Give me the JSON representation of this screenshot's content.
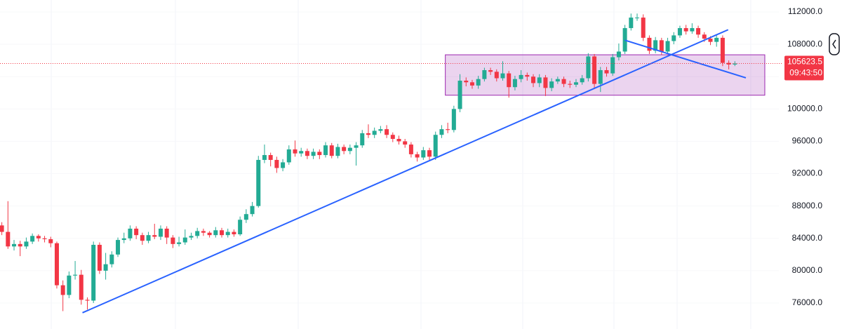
{
  "chart_data": {
    "type": "candlestick",
    "xlim": [
      -0.3,
      127.2
    ],
    "ylim": [
      72790,
      113475
    ],
    "yticks": [
      {
        "value": 76000,
        "label": "76000.0"
      },
      {
        "value": 80000,
        "label": "80000.0"
      },
      {
        "value": 84000,
        "label": "84000.0"
      },
      {
        "value": 88000,
        "label": "88000.0"
      },
      {
        "value": 92000,
        "label": "92000.0"
      },
      {
        "value": 96000,
        "label": "96000.0"
      },
      {
        "value": 100000,
        "label": "100000.0"
      },
      {
        "value": 104000,
        "label": "104000.0"
      },
      {
        "value": 108000,
        "label": "108000.0"
      },
      {
        "value": 112000,
        "label": "112000.0"
      }
    ],
    "up_color": "#22ab94",
    "down_color": "#f23645",
    "countdown": "09:43:50",
    "open": [
      85600,
      84800,
      83000,
      83300,
      83000,
      83600,
      84300,
      84000,
      83900,
      83400,
      78200,
      77000,
      79400,
      79500,
      76400,
      76300,
      83200,
      80000,
      80800,
      82000,
      83800,
      84000,
      85200,
      84400,
      83700,
      84400,
      84200,
      85200,
      84100,
      83300,
      83500,
      84100,
      84300,
      84900,
      84700,
      84400,
      85000,
      84400,
      84800,
      84500,
      86300,
      87000,
      88000,
      93700,
      94300,
      93700,
      92700,
      93400,
      95000,
      94500,
      94800,
      94200,
      94700,
      94300,
      95500,
      94200,
      95300,
      94800,
      95200,
      95500,
      97000,
      96800,
      97300,
      97500,
      96800,
      96300,
      96000,
      95600,
      94400,
      94000,
      94900,
      94100,
      96800,
      97500,
      97400,
      100000,
      103500,
      103300,
      102900,
      103700,
      104800,
      104600,
      103800,
      104400,
      102700,
      103700,
      104200,
      104000,
      103200,
      103900,
      102600,
      103400,
      103700,
      103100,
      103000,
      103300,
      103800,
      106500,
      103100,
      104800,
      104400,
      106400,
      107100,
      110000,
      111300,
      111300,
      108800,
      107200,
      108500,
      107100,
      108400,
      109100,
      110000,
      109600,
      110000,
      109200,
      108700,
      108300,
      108800,
      105700,
      105500
    ],
    "high": [
      86000,
      88600,
      83800,
      83700,
      84100,
      84600,
      84500,
      84300,
      84200,
      83600,
      78800,
      79900,
      81200,
      80100,
      76700,
      83600,
      83500,
      82200,
      82400,
      84100,
      84700,
      85600,
      85500,
      84700,
      84800,
      85800,
      85600,
      85500,
      84400,
      84200,
      85100,
      84700,
      85300,
      85200,
      84900,
      85400,
      85300,
      85200,
      85100,
      86700,
      87600,
      88500,
      94200,
      95600,
      94600,
      94100,
      93800,
      95500,
      96100,
      95200,
      95100,
      95100,
      95000,
      95900,
      95800,
      95700,
      95600,
      95600,
      95900,
      97400,
      98100,
      97700,
      97900,
      98000,
      97100,
      96700,
      96300,
      95900,
      94700,
      95300,
      95200,
      97200,
      98000,
      98300,
      100400,
      104300,
      103900,
      103600,
      104100,
      105100,
      105100,
      104900,
      105900,
      104700,
      104100,
      104800,
      104500,
      104300,
      104300,
      104200,
      103800,
      104000,
      104000,
      103500,
      103700,
      104200,
      106900,
      106800,
      105200,
      105200,
      106800,
      108100,
      110400,
      111800,
      111800,
      111700,
      109100,
      108900,
      108800,
      108800,
      109500,
      110300,
      110400,
      110600,
      110300,
      109500,
      109000,
      109100,
      109100,
      106000,
      105900
    ],
    "low": [
      84400,
      82700,
      82500,
      81800,
      82700,
      83300,
      83600,
      83500,
      82900,
      77800,
      75000,
      76600,
      78900,
      75800,
      75200,
      76000,
      79600,
      78900,
      80400,
      81700,
      83400,
      83700,
      83900,
      83200,
      83400,
      83900,
      83800,
      83300,
      82800,
      83000,
      83200,
      83800,
      84000,
      84300,
      84100,
      84100,
      84100,
      84100,
      84200,
      84300,
      85900,
      86700,
      87800,
      93300,
      92900,
      92100,
      92300,
      93100,
      94100,
      94100,
      93800,
      93800,
      93800,
      94000,
      93900,
      93900,
      94400,
      94400,
      93000,
      95200,
      96400,
      96400,
      97000,
      96400,
      95900,
      95600,
      95200,
      94000,
      93500,
      93700,
      93600,
      93700,
      96400,
      97000,
      97100,
      99600,
      102800,
      102500,
      102500,
      103400,
      104200,
      103400,
      103500,
      101400,
      102300,
      103300,
      103500,
      102700,
      102700,
      101600,
      102200,
      103100,
      102700,
      102600,
      102700,
      103000,
      103400,
      102600,
      102100,
      104000,
      104100,
      106000,
      106800,
      109700,
      110900,
      108400,
      106800,
      106900,
      106700,
      106800,
      108000,
      108800,
      109200,
      109300,
      108800,
      108300,
      107900,
      107700,
      105300,
      104900,
      105300
    ],
    "close": [
      84800,
      83000,
      83300,
      83000,
      83600,
      84300,
      84000,
      83900,
      83400,
      78200,
      77000,
      79400,
      79500,
      76400,
      76300,
      83200,
      80000,
      80800,
      82000,
      83800,
      84000,
      85200,
      84400,
      83700,
      84400,
      84200,
      85200,
      84100,
      83300,
      83500,
      84100,
      84300,
      84900,
      84700,
      84400,
      85000,
      84400,
      84800,
      84500,
      86300,
      87000,
      88000,
      93700,
      94300,
      93700,
      92700,
      93400,
      95000,
      94500,
      94800,
      94200,
      94700,
      94300,
      95500,
      94200,
      95300,
      94800,
      95200,
      95500,
      97000,
      96800,
      97300,
      97500,
      96800,
      96300,
      96000,
      95600,
      94400,
      94000,
      94900,
      94100,
      96800,
      97500,
      97400,
      100000,
      103500,
      103300,
      102900,
      103700,
      104800,
      104600,
      103800,
      104400,
      102700,
      103700,
      104200,
      104000,
      103200,
      103900,
      102600,
      103400,
      103700,
      103100,
      103000,
      103300,
      103800,
      106500,
      103100,
      104800,
      104400,
      106400,
      107100,
      110000,
      111300,
      111300,
      108800,
      107200,
      108500,
      107100,
      108400,
      109100,
      110000,
      109600,
      110000,
      109200,
      108700,
      108300,
      108800,
      105700,
      105500,
      105623.5
    ],
    "box": {
      "x": [
        72.6,
        124.9
      ],
      "y": [
        101700,
        106700
      ],
      "color": "#9c27b0"
    },
    "trend_lines": [
      {
        "x": [
          13.2,
          118.9
        ],
        "y": [
          74800,
          109800
        ],
        "color": "#2962ff"
      },
      {
        "x": [
          102,
          121.8
        ],
        "y": [
          108500,
          103850
        ],
        "color": "#2962ff"
      }
    ]
  }
}
